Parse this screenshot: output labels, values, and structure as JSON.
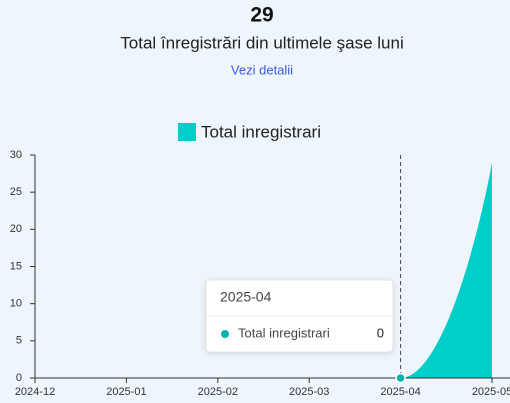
{
  "header": {
    "total": "29",
    "subtitle": "Total înregistrări din ultimele şase luni",
    "link": "Vezi detalii"
  },
  "chart_data": {
    "type": "area",
    "categories": [
      "2024-12",
      "2025-01",
      "2025-02",
      "2025-03",
      "2025-04",
      "2025-05"
    ],
    "series": [
      {
        "name": "Total inregistrari",
        "color": "#00cec9",
        "values": [
          0,
          0,
          0,
          0,
          0,
          29
        ]
      }
    ],
    "ylim": [
      0,
      30
    ],
    "yticks": [
      0,
      5,
      10,
      15,
      20,
      25,
      30
    ],
    "grid": false,
    "legend": "top",
    "tooltip": {
      "category": 4
    }
  }
}
